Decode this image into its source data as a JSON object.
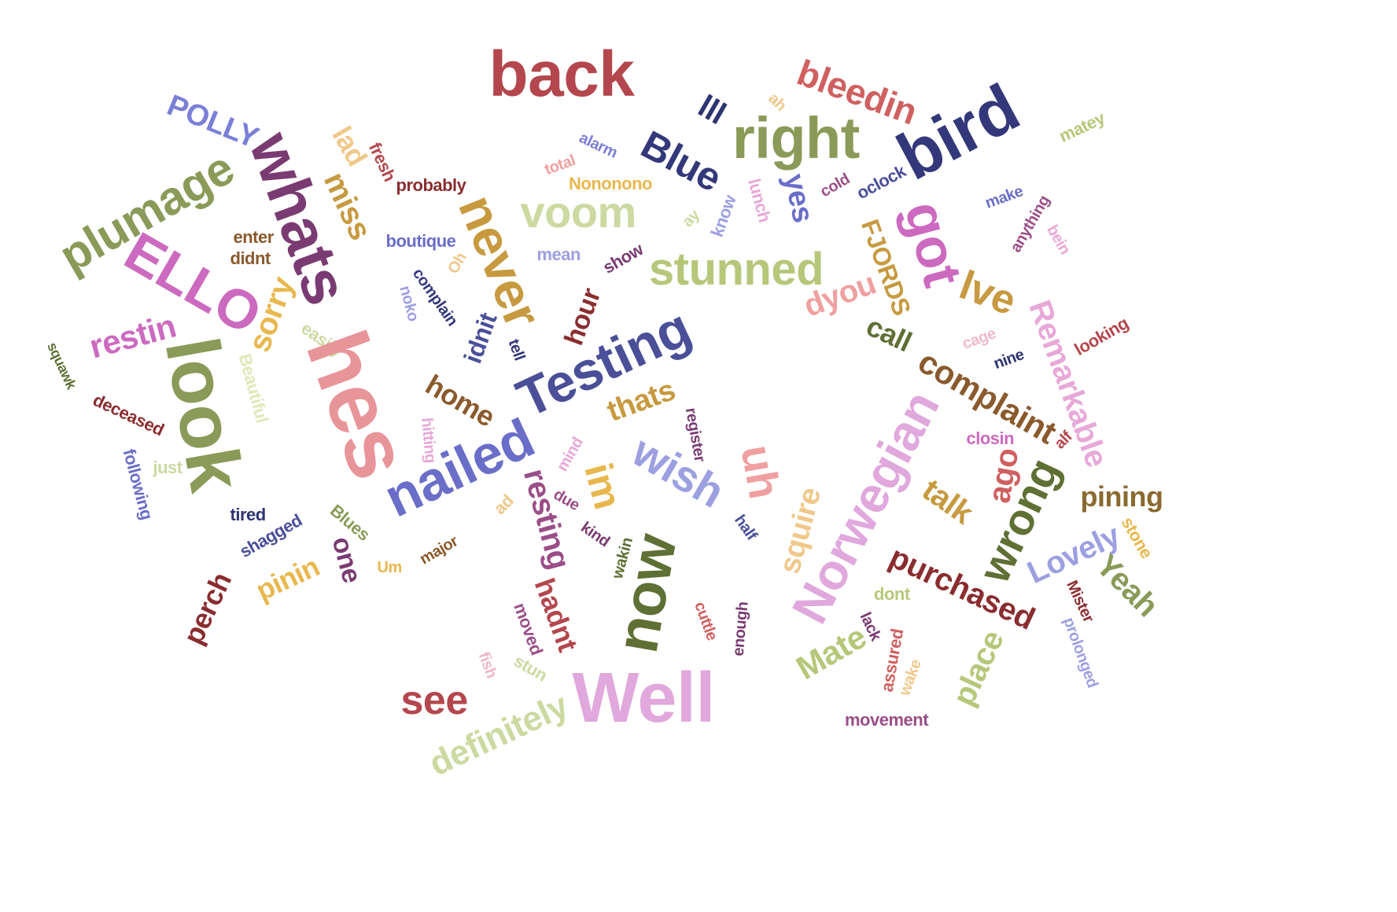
{
  "words": [
    {
      "text": "back",
      "color": "#b3474d"
    },
    {
      "text": "bleedin",
      "color": "#d06060"
    },
    {
      "text": "POLLY",
      "color": "#7b7fd6"
    },
    {
      "text": "ah",
      "color": "#f0c88a"
    },
    {
      "text": "lll",
      "color": "#2e3470"
    },
    {
      "text": "right",
      "color": "#8a9a58"
    },
    {
      "text": "bird",
      "color": "#33387a"
    },
    {
      "text": "matey",
      "color": "#b7c77a"
    },
    {
      "text": "whats",
      "color": "#7a3b72"
    },
    {
      "text": "plumage",
      "color": "#8a9a58"
    },
    {
      "text": "lad",
      "color": "#f0c88a"
    },
    {
      "text": "fresh",
      "color": "#b3474d"
    },
    {
      "text": "alarm",
      "color": "#7b7fd6"
    },
    {
      "text": "Blue",
      "color": "#33387a"
    },
    {
      "text": "total",
      "color": "#f0a0a0"
    },
    {
      "text": "Nononono",
      "color": "#e8b84e"
    },
    {
      "text": "probably",
      "color": "#8a2d30"
    },
    {
      "text": "voom",
      "color": "#ccd9a0"
    },
    {
      "text": "miss",
      "color": "#c79a40"
    },
    {
      "text": "never",
      "color": "#c79a40"
    },
    {
      "text": "yes",
      "color": "#6a6ec8"
    },
    {
      "text": "lunch",
      "color": "#e8a8d8"
    },
    {
      "text": "cold",
      "color": "#9a4e88"
    },
    {
      "text": "oclock",
      "color": "#4a4f98"
    },
    {
      "text": "got",
      "color": "#cc6ac0"
    },
    {
      "text": "make",
      "color": "#6a6ec8"
    },
    {
      "text": "anything",
      "color": "#9a4e88"
    },
    {
      "text": "bein",
      "color": "#e8a8d8"
    },
    {
      "text": "ay",
      "color": "#ccd9a0"
    },
    {
      "text": "know",
      "color": "#9ca0e0"
    },
    {
      "text": "FJORDS",
      "color": "#c79a40"
    },
    {
      "text": "enter",
      "color": "#8a5a2d"
    },
    {
      "text": "didnt",
      "color": "#8a5a2d"
    },
    {
      "text": "boutique",
      "color": "#6a6ec8"
    },
    {
      "text": "mean",
      "color": "#9ca0e0"
    },
    {
      "text": "show",
      "color": "#7a3b72"
    },
    {
      "text": "stunned",
      "color": "#b7c77a"
    },
    {
      "text": "ELLO",
      "color": "#cc6ac0"
    },
    {
      "text": "Oh",
      "color": "#f0c88a"
    },
    {
      "text": "complain",
      "color": "#33387a"
    },
    {
      "text": "noko",
      "color": "#9ca0e0"
    },
    {
      "text": "dyou",
      "color": "#f0a0a0"
    },
    {
      "text": "lve",
      "color": "#c79a40"
    },
    {
      "text": "restin",
      "color": "#cc6ac0"
    },
    {
      "text": "sorry",
      "color": "#e8b84e"
    },
    {
      "text": "easily",
      "color": "#ccd9a0"
    },
    {
      "text": "idnit",
      "color": "#4a4f98"
    },
    {
      "text": "hour",
      "color": "#8a2d30"
    },
    {
      "text": "call",
      "color": "#5e7034"
    },
    {
      "text": "Remarkable",
      "color": "#e8a8d8"
    },
    {
      "text": "looking",
      "color": "#b3474d"
    },
    {
      "text": "squawk",
      "color": "#5e7034"
    },
    {
      "text": "look",
      "color": "#8a9a58"
    },
    {
      "text": "hes",
      "color": "#e8959a"
    },
    {
      "text": "Beautiful",
      "color": "#e0e8b8"
    },
    {
      "text": "tell",
      "color": "#33387a"
    },
    {
      "text": "Testing",
      "color": "#4a4f98"
    },
    {
      "text": "cage",
      "color": "#f0b8c8"
    },
    {
      "text": "nine",
      "color": "#2e3470"
    },
    {
      "text": "deceased",
      "color": "#8a2d30"
    },
    {
      "text": "home",
      "color": "#8a5a2d"
    },
    {
      "text": "thats",
      "color": "#c79a40"
    },
    {
      "text": "register",
      "color": "#7a3b72"
    },
    {
      "text": "complaint",
      "color": "#8a5a2d"
    },
    {
      "text": "hitting",
      "color": "#e8a8d8"
    },
    {
      "text": "closin",
      "color": "#cc6ac0"
    },
    {
      "text": "alf",
      "color": "#b3474d"
    },
    {
      "text": "following",
      "color": "#6a6ec8"
    },
    {
      "text": "just",
      "color": "#ccd9a0"
    },
    {
      "text": "nailed",
      "color": "#6a6ec8"
    },
    {
      "text": "mind",
      "color": "#e8a8d8"
    },
    {
      "text": "wish",
      "color": "#9ca0e0"
    },
    {
      "text": "uh",
      "color": "#f0a0a0"
    },
    {
      "text": "Norwegian",
      "color": "#e0a8dc"
    },
    {
      "text": "ago",
      "color": "#d06060"
    },
    {
      "text": "pining",
      "color": "#8a6a30"
    },
    {
      "text": "im",
      "color": "#e8b84e"
    },
    {
      "text": "ad",
      "color": "#f0c88a"
    },
    {
      "text": "due",
      "color": "#9a4e88"
    },
    {
      "text": "resting",
      "color": "#9a4e88"
    },
    {
      "text": "talk",
      "color": "#c79a40"
    },
    {
      "text": "wrong",
      "color": "#5e7034"
    },
    {
      "text": "tired",
      "color": "#2e3470"
    },
    {
      "text": "Blues",
      "color": "#8a9a58"
    },
    {
      "text": "shagged",
      "color": "#4a4f98"
    },
    {
      "text": "half",
      "color": "#4a4f98"
    },
    {
      "text": "squire",
      "color": "#f0c88a"
    },
    {
      "text": "stone",
      "color": "#e8b84e"
    },
    {
      "text": "Lovely",
      "color": "#9ca0e0"
    },
    {
      "text": "one",
      "color": "#7a3b72"
    },
    {
      "text": "kind",
      "color": "#7a3b72"
    },
    {
      "text": "now",
      "color": "#5e7034"
    },
    {
      "text": "Um",
      "color": "#e8b84e"
    },
    {
      "text": "major",
      "color": "#8a5a2d"
    },
    {
      "text": "wakin",
      "color": "#5e7034"
    },
    {
      "text": "purchased",
      "color": "#8a2d30"
    },
    {
      "text": "Yeah",
      "color": "#8a9a58"
    },
    {
      "text": "pinin",
      "color": "#e8b84e"
    },
    {
      "text": "perch",
      "color": "#8a2d30"
    },
    {
      "text": "hadnt",
      "color": "#b3474d"
    },
    {
      "text": "Mister",
      "color": "#8a2d30"
    },
    {
      "text": "dont",
      "color": "#b7c77a"
    },
    {
      "text": "moved",
      "color": "#9a4e88"
    },
    {
      "text": "cuttle",
      "color": "#d06060"
    },
    {
      "text": "enough",
      "color": "#7a3b72"
    },
    {
      "text": "lack",
      "color": "#7a3b72"
    },
    {
      "text": "prolonged",
      "color": "#9ca0e0"
    },
    {
      "text": "Mate",
      "color": "#b7c77a"
    },
    {
      "text": "assured",
      "color": "#d06060"
    },
    {
      "text": "fish",
      "color": "#f0b8c8"
    },
    {
      "text": "stun",
      "color": "#ccd9a0"
    },
    {
      "text": "place",
      "color": "#b7c77a"
    },
    {
      "text": "wake",
      "color": "#f0c88a"
    },
    {
      "text": "see",
      "color": "#b3474d"
    },
    {
      "text": "Well",
      "color": "#e0a8dc"
    },
    {
      "text": "movement",
      "color": "#9a4e88"
    },
    {
      "text": "definitely",
      "color": "#ccd9a0"
    }
  ]
}
